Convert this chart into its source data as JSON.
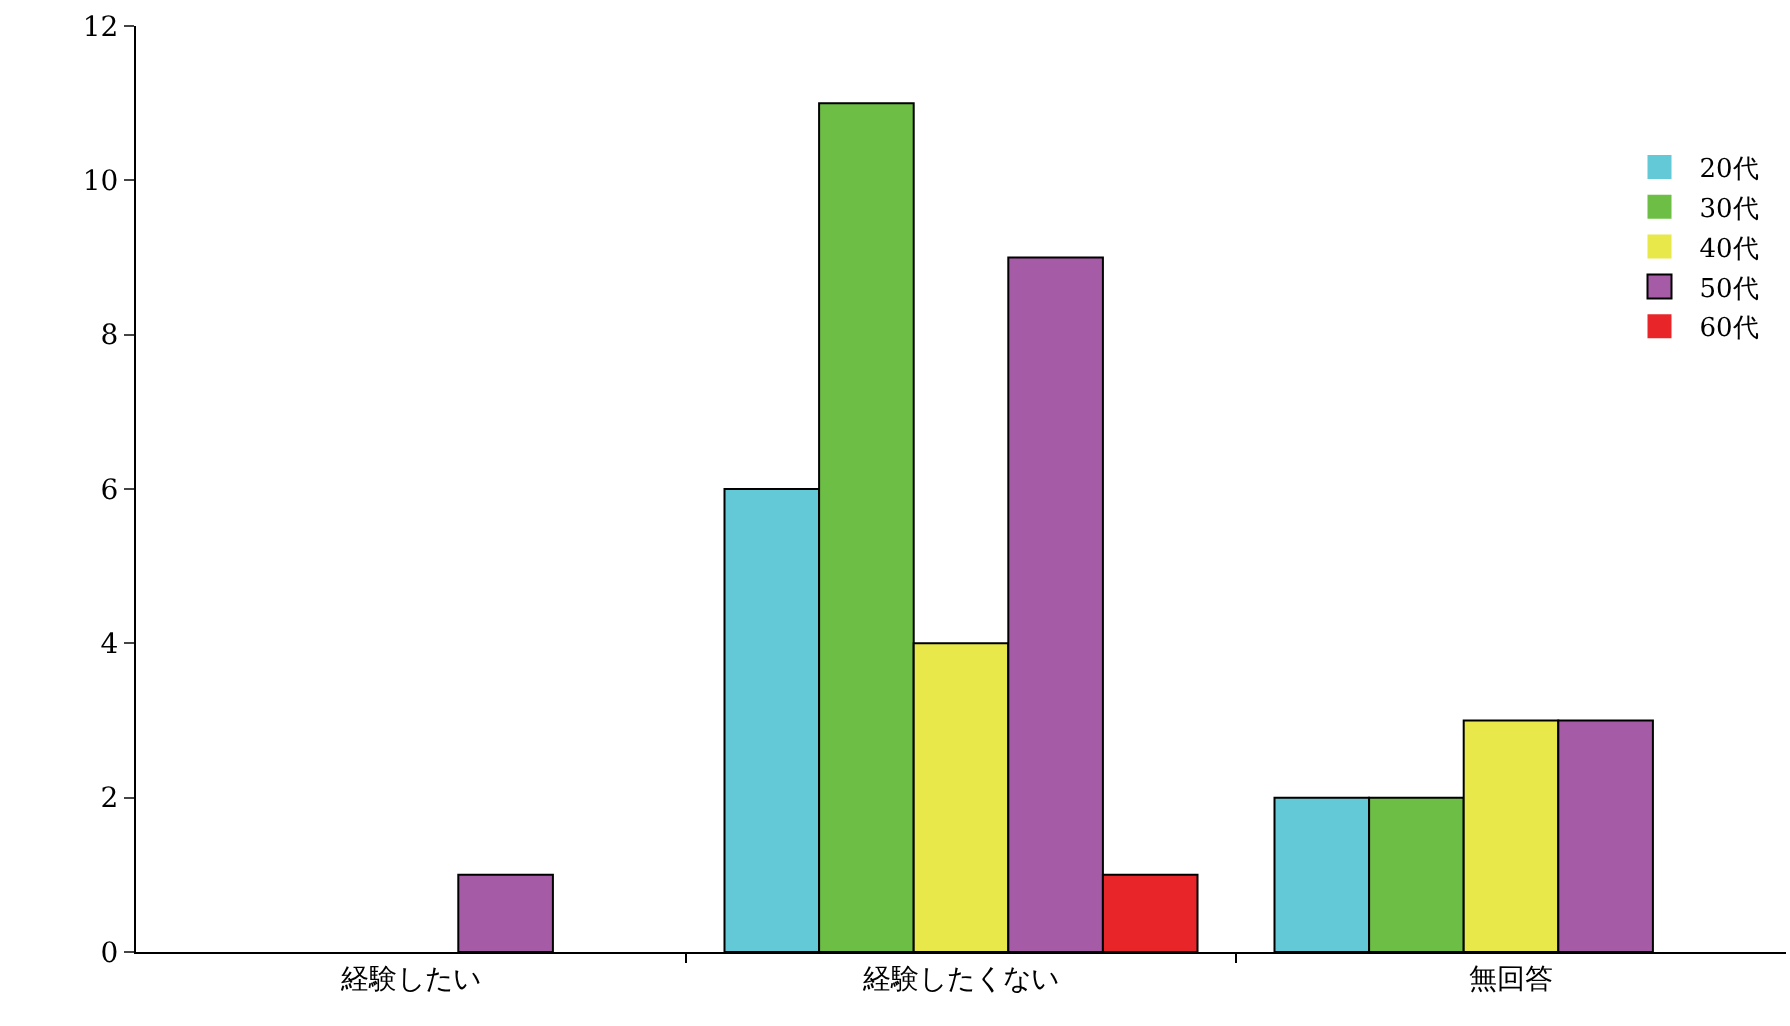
{
  "chart_data": {
    "type": "bar",
    "categories": [
      "経験したい",
      "経験したくない",
      "無回答"
    ],
    "series": [
      {
        "name": "20代",
        "color": "#63c9d6",
        "values": [
          0,
          6,
          2
        ]
      },
      {
        "name": "30代",
        "color": "#6cbf44",
        "values": [
          0,
          11,
          2
        ]
      },
      {
        "name": "40代",
        "color": "#e8e84a",
        "values": [
          0,
          4,
          3
        ]
      },
      {
        "name": "50代",
        "color": "#a65ba6",
        "values": [
          1,
          9,
          3
        ]
      },
      {
        "name": "60代",
        "color": "#e8262a",
        "values": [
          0,
          1,
          0
        ]
      }
    ],
    "ylim": [
      0,
      12
    ],
    "yticks": [
      0,
      2,
      4,
      6,
      8,
      10,
      12
    ],
    "legend": "top right"
  }
}
